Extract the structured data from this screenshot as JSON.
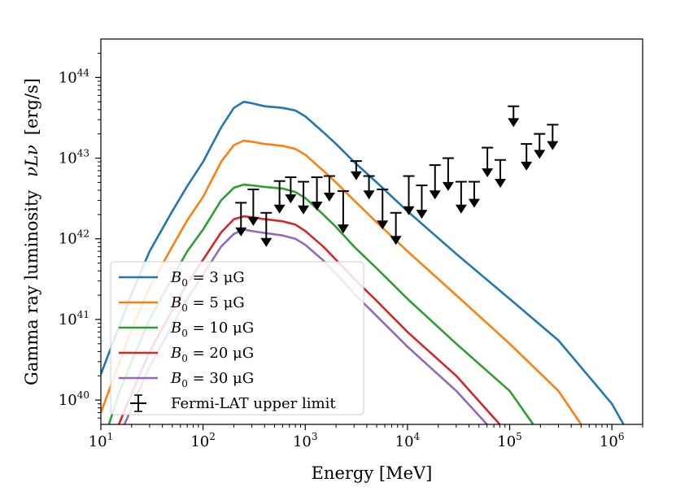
{
  "chart_data": {
    "type": "line",
    "title": "",
    "xlabel": "Energy [MeV]",
    "ylabel_text": "Gamma ray luminosity",
    "ylabel_symbol": "νLν",
    "ylabel_unit": "[erg/s]",
    "xscale": "log",
    "yscale": "log",
    "xlim": [
      10,
      2000000
    ],
    "ylim": [
      5e+39,
      3e+44
    ],
    "x_ticks": [
      {
        "value": 10,
        "base": "10",
        "exp": "1"
      },
      {
        "value": 100,
        "base": "10",
        "exp": "2"
      },
      {
        "value": 1000,
        "base": "10",
        "exp": "3"
      },
      {
        "value": 10000,
        "base": "10",
        "exp": "4"
      },
      {
        "value": 100000,
        "base": "10",
        "exp": "5"
      },
      {
        "value": 1000000,
        "base": "10",
        "exp": "6"
      }
    ],
    "y_ticks": [
      {
        "value": 1e+40,
        "base": "10",
        "exp": "40"
      },
      {
        "value": 1e+41,
        "base": "10",
        "exp": "41"
      },
      {
        "value": 1e+42,
        "base": "10",
        "exp": "42"
      },
      {
        "value": 1e+43,
        "base": "10",
        "exp": "43"
      },
      {
        "value": 1e+44,
        "base": "10",
        "exp": "44"
      }
    ],
    "legend_position": "lower-left",
    "series": [
      {
        "name": "B0 = 3 μG",
        "label_main": "B",
        "label_sub": "0",
        "label_rest": " = 3 μG",
        "color": "#1f77b4",
        "points": [
          [
            10,
            2.1e+40
          ],
          [
            15,
            8e+40
          ],
          [
            20,
            2.1e+41
          ],
          [
            30,
            7e+41
          ],
          [
            50,
            2.2e+42
          ],
          [
            70,
            4.5e+42
          ],
          [
            100,
            9e+42
          ],
          [
            150,
            2.4e+43
          ],
          [
            200,
            4.2e+43
          ],
          [
            250,
            5e+43
          ],
          [
            300,
            4.8e+43
          ],
          [
            400,
            4.4e+43
          ],
          [
            600,
            4.2e+43
          ],
          [
            800,
            3.9e+43
          ],
          [
            1000,
            3.3e+43
          ],
          [
            1500,
            2.1e+43
          ],
          [
            2000,
            1.5e+43
          ],
          [
            3000,
            9e+42
          ],
          [
            5000,
            5e+42
          ],
          [
            10000,
            2.2e+42
          ],
          [
            30000,
            6.5e+41
          ],
          [
            100000,
            1.8e+41
          ],
          [
            300000,
            5.5e+40
          ],
          [
            1000000,
            9e+39
          ],
          [
            1300000,
            5e+39
          ]
        ]
      },
      {
        "name": "B0 = 5 μG",
        "label_main": "B",
        "label_sub": "0",
        "label_rest": " = 5 μG",
        "color": "#ff7f0e",
        "points": [
          [
            10,
            7e+39
          ],
          [
            15,
            2.8e+40
          ],
          [
            20,
            7.5e+40
          ],
          [
            30,
            2.5e+41
          ],
          [
            50,
            8e+41
          ],
          [
            70,
            1.7e+42
          ],
          [
            100,
            3.3e+42
          ],
          [
            150,
            9e+42
          ],
          [
            200,
            1.45e+43
          ],
          [
            250,
            1.65e+43
          ],
          [
            300,
            1.6e+43
          ],
          [
            400,
            1.5e+43
          ],
          [
            600,
            1.42e+43
          ],
          [
            800,
            1.3e+43
          ],
          [
            1000,
            1.1e+43
          ],
          [
            1500,
            7e+42
          ],
          [
            2000,
            5e+42
          ],
          [
            3000,
            3e+42
          ],
          [
            5000,
            1.6e+42
          ],
          [
            10000,
            7e+41
          ],
          [
            30000,
            2e+41
          ],
          [
            100000,
            5e+40
          ],
          [
            300000,
            1.3e+40
          ],
          [
            500000,
            5e+39
          ]
        ]
      },
      {
        "name": "B0 = 10 μG",
        "label_main": "B",
        "label_sub": "0",
        "label_rest": " = 10 μG",
        "color": "#2ca02c",
        "points": [
          [
            12,
            5e+39
          ],
          [
            15,
            1.2e+40
          ],
          [
            20,
            3e+40
          ],
          [
            30,
            1e+41
          ],
          [
            50,
            3.3e+41
          ],
          [
            70,
            7e+41
          ],
          [
            100,
            1.3e+42
          ],
          [
            150,
            3e+42
          ],
          [
            200,
            4.3e+42
          ],
          [
            250,
            4.7e+42
          ],
          [
            300,
            4.6e+42
          ],
          [
            400,
            4.4e+42
          ],
          [
            600,
            4.2e+42
          ],
          [
            800,
            3.8e+42
          ],
          [
            1000,
            3.2e+42
          ],
          [
            1500,
            2e+42
          ],
          [
            2000,
            1.4e+42
          ],
          [
            3000,
            8e+41
          ],
          [
            5000,
            4.3e+41
          ],
          [
            10000,
            1.8e+41
          ],
          [
            30000,
            5e+40
          ],
          [
            100000,
            1.3e+40
          ],
          [
            170000,
            5e+39
          ]
        ]
      },
      {
        "name": "B0 = 20 μG",
        "label_main": "B",
        "label_sub": "0",
        "label_rest": " = 20 μG",
        "color": "#d62728",
        "points": [
          [
            15,
            5e+39
          ],
          [
            20,
            1.2e+40
          ],
          [
            30,
            4e+40
          ],
          [
            50,
            1.3e+41
          ],
          [
            70,
            2.8e+41
          ],
          [
            100,
            5.5e+41
          ],
          [
            150,
            1.2e+42
          ],
          [
            200,
            1.75e+42
          ],
          [
            250,
            1.9e+42
          ],
          [
            300,
            1.85e+42
          ],
          [
            400,
            1.75e+42
          ],
          [
            600,
            1.65e+42
          ],
          [
            800,
            1.5e+42
          ],
          [
            1000,
            1.25e+42
          ],
          [
            1500,
            8e+41
          ],
          [
            2000,
            5.5e+41
          ],
          [
            3000,
            3.2e+41
          ],
          [
            5000,
            1.7e+41
          ],
          [
            10000,
            7e+40
          ],
          [
            30000,
            2e+40
          ],
          [
            80000,
            5e+39
          ]
        ]
      },
      {
        "name": "B0 = 30 μG",
        "label_main": "B",
        "label_sub": "0",
        "label_rest": " = 30 μG",
        "color": "#9467bd",
        "points": [
          [
            17,
            5e+39
          ],
          [
            20,
            8e+39
          ],
          [
            30,
            2.6e+40
          ],
          [
            50,
            8.5e+40
          ],
          [
            70,
            1.8e+41
          ],
          [
            100,
            3.6e+41
          ],
          [
            150,
            8e+41
          ],
          [
            200,
            1.15e+42
          ],
          [
            250,
            1.3e+42
          ],
          [
            300,
            1.25e+42
          ],
          [
            400,
            1.18e+42
          ],
          [
            600,
            1.1e+42
          ],
          [
            800,
            1e+42
          ],
          [
            1000,
            8.4e+41
          ],
          [
            1500,
            5.4e+41
          ],
          [
            2000,
            3.7e+41
          ],
          [
            3000,
            2.1e+41
          ],
          [
            5000,
            1.1e+41
          ],
          [
            10000,
            4.6e+40
          ],
          [
            30000,
            1.3e+40
          ],
          [
            60000,
            5e+39
          ]
        ]
      }
    ],
    "upper_limits": {
      "name": "Fermi-LAT upper limit",
      "color": "#000000",
      "points": [
        [
          235,
          2.8e+42,
          1.15e+42
        ],
        [
          310,
          4.1e+42,
          1.55e+42
        ],
        [
          415,
          2.1e+42,
          8.5e+41
        ],
        [
          560,
          5.2e+42,
          2.2e+42
        ],
        [
          720,
          5.8e+42,
          2.95e+42
        ],
        [
          960,
          5.1e+42,
          2.15e+42
        ],
        [
          1300,
          5.8e+42,
          2.4e+42
        ],
        [
          1720,
          6e+42,
          3.1e+42
        ],
        [
          2350,
          3.9e+42,
          1.25e+42
        ],
        [
          3150,
          9.2e+42,
          5.7e+42
        ],
        [
          4200,
          6e+42,
          3.3e+42
        ],
        [
          5700,
          4.1e+42,
          1.4e+42
        ],
        [
          7700,
          2.1e+42,
          9e+41
        ],
        [
          10300,
          6e+42,
          2.1e+42
        ],
        [
          13800,
          4.6e+42,
          1.9e+42
        ],
        [
          18600,
          8.2e+42,
          3.3e+42
        ],
        [
          25000,
          1e+43,
          4.2e+42
        ],
        [
          33500,
          5.1e+42,
          2.2e+42
        ],
        [
          45000,
          5.1e+42,
          2.6e+42
        ],
        [
          60500,
          1.35e+43,
          6.2e+42
        ],
        [
          81000,
          9.5e+42,
          4.6e+42
        ],
        [
          109000,
          4.4e+43,
          2.6e+43
        ],
        [
          146000,
          1.5e+43,
          7.5e+42
        ],
        [
          196000,
          2e+43,
          1.05e+43
        ],
        [
          263000,
          2.6e+43,
          1.35e+43
        ]
      ]
    }
  }
}
